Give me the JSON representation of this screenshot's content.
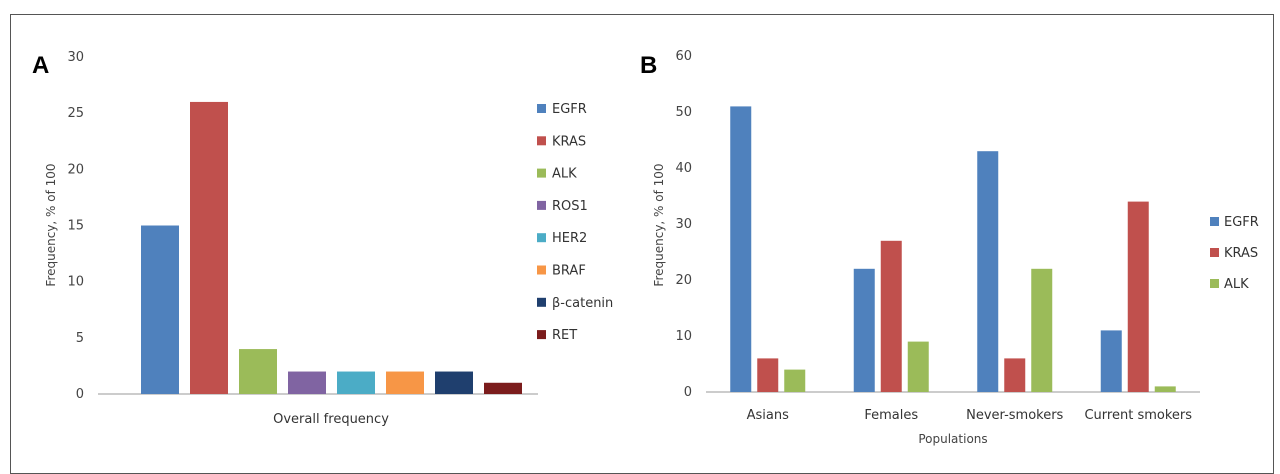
{
  "chart_data": [
    {
      "type": "bar",
      "panel": "A",
      "categories": [
        "Overall frequency"
      ],
      "series": [
        {
          "name": "EGFR",
          "color": "#4f81bd",
          "values": [
            15
          ]
        },
        {
          "name": "KRAS",
          "color": "#c0504d",
          "values": [
            26
          ]
        },
        {
          "name": "ALK",
          "color": "#9bbb59",
          "values": [
            4
          ]
        },
        {
          "name": "ROS1",
          "color": "#8064a2",
          "values": [
            2
          ]
        },
        {
          "name": "HER2",
          "color": "#4bacc6",
          "values": [
            2
          ]
        },
        {
          "name": "BRAF",
          "color": "#f79646",
          "values": [
            2
          ]
        },
        {
          "name": "β-catenin",
          "color": "#1f3f6e",
          "values": [
            2
          ]
        },
        {
          "name": "RET",
          "color": "#7b1c1c",
          "values": [
            1
          ]
        }
      ],
      "xlabel": "",
      "ylabel": "Frequency, % of 100",
      "ylim": [
        0,
        30
      ],
      "yticks": [
        0,
        5,
        10,
        15,
        20,
        25,
        30
      ],
      "grid": false,
      "legend": "right"
    },
    {
      "type": "bar",
      "panel": "B",
      "categories": [
        "Asians",
        "Females",
        "Never-smokers",
        "Current smokers"
      ],
      "series": [
        {
          "name": "EGFR",
          "color": "#4f81bd",
          "values": [
            51,
            22,
            43,
            11
          ]
        },
        {
          "name": "KRAS",
          "color": "#c0504d",
          "values": [
            6,
            27,
            6,
            34
          ]
        },
        {
          "name": "ALK",
          "color": "#9bbb59",
          "values": [
            4,
            9,
            22,
            1
          ]
        }
      ],
      "xlabel": "Populations",
      "ylabel": "Frequency, % of 100",
      "ylim": [
        0,
        60
      ],
      "yticks": [
        0,
        10,
        20,
        30,
        40,
        50,
        60
      ],
      "grid": false,
      "legend": "right"
    }
  ]
}
